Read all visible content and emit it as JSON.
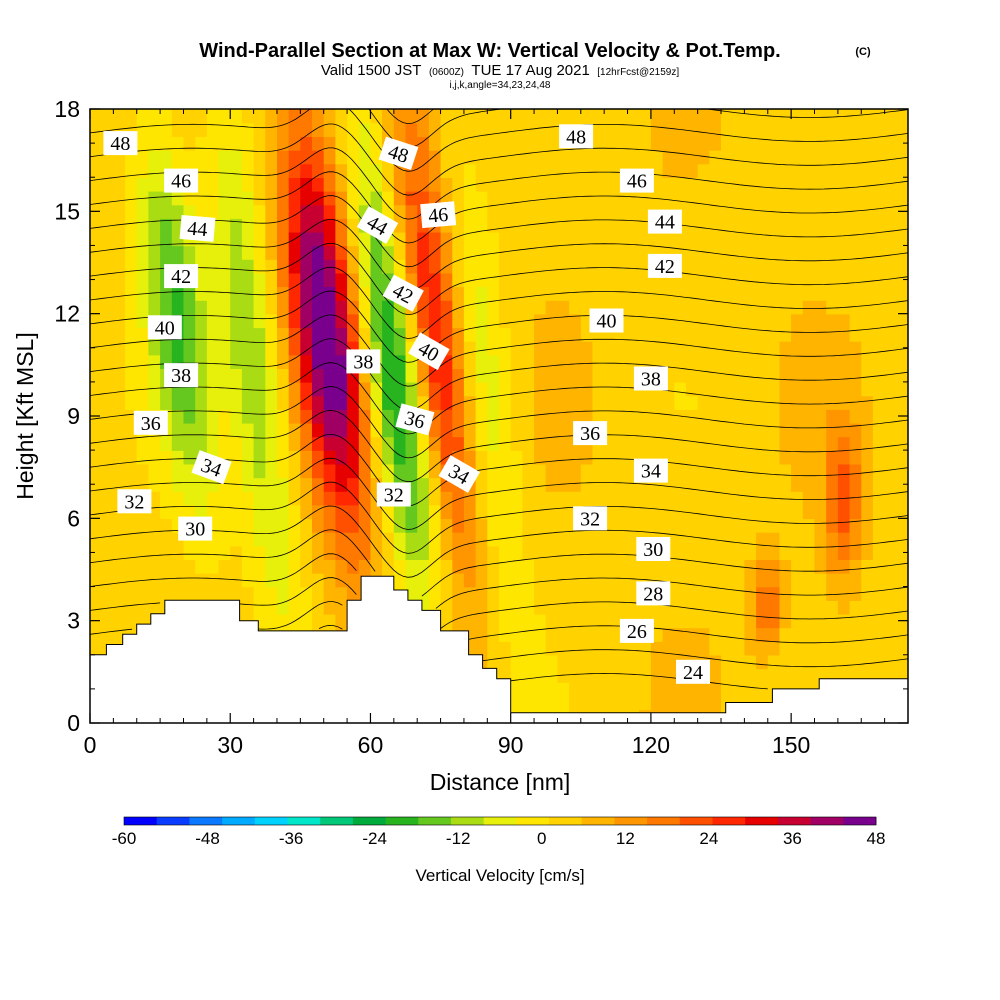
{
  "chart_data": {
    "type": "heatmap",
    "title": "Wind-Parallel Section at Max W: Vertical Velocity & Pot.Temp.",
    "title_mark": "(C)",
    "subtitle_main": "Valid 1500 JST",
    "subtitle_utc": "(0600Z)",
    "subtitle_date": "TUE 17 Aug 2021",
    "subtitle_fcst": "[12hrFcst@2159z]",
    "subtitle_line3": "i,j,k,angle=34,23,24,48",
    "xlabel": "Distance [nm]",
    "ylabel": "Height [Kft MSL]",
    "xlim": [
      0,
      175
    ],
    "ylim": [
      0,
      18
    ],
    "x_ticks": [
      0,
      30,
      60,
      90,
      120,
      150
    ],
    "y_ticks": [
      0,
      3,
      6,
      9,
      12,
      15,
      18
    ],
    "colorbar": {
      "label": "Vertical Velocity [cm/s]",
      "min": -60,
      "max": 48,
      "tick_values": [
        -60,
        -48,
        -36,
        -24,
        -12,
        0,
        12,
        24,
        36,
        48
      ],
      "colors": [
        "#0000ff",
        "#0a3cff",
        "#0a78ff",
        "#00aaff",
        "#00d2ff",
        "#00e6c8",
        "#00c878",
        "#00aa3c",
        "#28b41e",
        "#64c81e",
        "#aadc14",
        "#e6f00a",
        "#ffe600",
        "#ffd200",
        "#ffb400",
        "#ff9600",
        "#ff7800",
        "#ff5000",
        "#ff2800",
        "#e60000",
        "#c80032",
        "#a00064",
        "#78008c"
      ]
    },
    "velocity_cores": [
      {
        "x0": 9,
        "x1": 28,
        "y0": 6,
        "y1": 18,
        "w": -22
      },
      {
        "x0": 26,
        "x1": 44,
        "y0": 2.8,
        "y1": 18,
        "w": -18
      },
      {
        "x0": 40,
        "x1": 61,
        "y0": 5,
        "y1": 18,
        "w": 46
      },
      {
        "x0": 56,
        "x1": 76,
        "y0": 3,
        "y1": 18,
        "w": -38
      },
      {
        "x0": 61,
        "x1": 87,
        "y0": 4,
        "y1": 18,
        "w": 40
      },
      {
        "x0": 72,
        "x1": 92,
        "y0": 3,
        "y1": 18,
        "w": -22
      },
      {
        "x0": 140,
        "x1": 150,
        "y0": 2,
        "y1": 5,
        "w": 16
      },
      {
        "x0": 155,
        "x1": 167,
        "y0": 4,
        "y1": 9,
        "w": 18
      }
    ],
    "terrain": [
      {
        "x": 0,
        "y": 2.0
      },
      {
        "x": 3.5,
        "y": 2.0
      },
      {
        "x": 3.5,
        "y": 2.3
      },
      {
        "x": 7,
        "y": 2.3
      },
      {
        "x": 7,
        "y": 2.6
      },
      {
        "x": 10,
        "y": 2.6
      },
      {
        "x": 10,
        "y": 2.9
      },
      {
        "x": 13,
        "y": 2.9
      },
      {
        "x": 13,
        "y": 3.2
      },
      {
        "x": 16,
        "y": 3.2
      },
      {
        "x": 16,
        "y": 3.6
      },
      {
        "x": 32,
        "y": 3.6
      },
      {
        "x": 32,
        "y": 3.0
      },
      {
        "x": 36,
        "y": 3.0
      },
      {
        "x": 36,
        "y": 2.7
      },
      {
        "x": 55,
        "y": 2.7
      },
      {
        "x": 55,
        "y": 3.6
      },
      {
        "x": 58,
        "y": 3.6
      },
      {
        "x": 58,
        "y": 4.3
      },
      {
        "x": 65,
        "y": 4.3
      },
      {
        "x": 65,
        "y": 3.9
      },
      {
        "x": 68,
        "y": 3.9
      },
      {
        "x": 68,
        "y": 3.6
      },
      {
        "x": 71,
        "y": 3.6
      },
      {
        "x": 71,
        "y": 3.3
      },
      {
        "x": 75,
        "y": 3.3
      },
      {
        "x": 75,
        "y": 2.7
      },
      {
        "x": 81,
        "y": 2.7
      },
      {
        "x": 81,
        "y": 2.0
      },
      {
        "x": 84,
        "y": 2.0
      },
      {
        "x": 84,
        "y": 1.6
      },
      {
        "x": 87,
        "y": 1.6
      },
      {
        "x": 87,
        "y": 1.3
      },
      {
        "x": 90,
        "y": 1.3
      },
      {
        "x": 90,
        "y": 0.3
      },
      {
        "x": 136,
        "y": 0.3
      },
      {
        "x": 136,
        "y": 0.6
      },
      {
        "x": 146,
        "y": 0.6
      },
      {
        "x": 146,
        "y": 1.0
      },
      {
        "x": 156,
        "y": 1.0
      },
      {
        "x": 156,
        "y": 1.3
      },
      {
        "x": 175,
        "y": 1.3
      }
    ],
    "theta_levels": [
      24,
      25,
      26,
      27,
      28,
      29,
      30,
      31,
      32,
      33,
      34,
      35,
      36,
      37,
      38,
      39,
      40,
      41,
      42,
      43,
      44,
      45,
      46,
      47,
      48,
      49
    ],
    "theta_labels": [
      {
        "text": "48",
        "x": 6.5,
        "y": 17.0,
        "rot": 0
      },
      {
        "text": "46",
        "x": 19.5,
        "y": 15.9,
        "rot": 0
      },
      {
        "text": "44",
        "x": 23,
        "y": 14.5,
        "rot": 5
      },
      {
        "text": "42",
        "x": 19.5,
        "y": 13.1,
        "rot": 0
      },
      {
        "text": "40",
        "x": 16,
        "y": 11.6,
        "rot": 0
      },
      {
        "text": "38",
        "x": 19.5,
        "y": 10.2,
        "rot": 0
      },
      {
        "text": "36",
        "x": 13,
        "y": 8.8,
        "rot": 0
      },
      {
        "text": "34",
        "x": 26,
        "y": 7.5,
        "rot": 20
      },
      {
        "text": "32",
        "x": 9.5,
        "y": 6.5,
        "rot": 0
      },
      {
        "text": "30",
        "x": 22.5,
        "y": 5.7,
        "rot": 0
      },
      {
        "text": "48",
        "x": 66,
        "y": 16.7,
        "rot": 18
      },
      {
        "text": "44",
        "x": 61.5,
        "y": 14.6,
        "rot": 30
      },
      {
        "text": "46",
        "x": 74.5,
        "y": 14.9,
        "rot": -5
      },
      {
        "text": "42",
        "x": 67,
        "y": 12.6,
        "rot": 28
      },
      {
        "text": "40",
        "x": 72.5,
        "y": 10.9,
        "rot": 30
      },
      {
        "text": "38",
        "x": 58.5,
        "y": 10.6,
        "rot": 0
      },
      {
        "text": "36",
        "x": 69.5,
        "y": 8.9,
        "rot": 15
      },
      {
        "text": "34",
        "x": 79,
        "y": 7.3,
        "rot": 30
      },
      {
        "text": "32",
        "x": 65,
        "y": 6.7,
        "rot": 0
      },
      {
        "text": "48",
        "x": 104,
        "y": 17.2,
        "rot": 0
      },
      {
        "text": "46",
        "x": 117,
        "y": 15.9,
        "rot": 0
      },
      {
        "text": "44",
        "x": 123,
        "y": 14.7,
        "rot": 0
      },
      {
        "text": "42",
        "x": 123,
        "y": 13.4,
        "rot": 0
      },
      {
        "text": "40",
        "x": 110.5,
        "y": 11.8,
        "rot": 0
      },
      {
        "text": "38",
        "x": 120,
        "y": 10.1,
        "rot": 0
      },
      {
        "text": "36",
        "x": 107,
        "y": 8.5,
        "rot": 0
      },
      {
        "text": "34",
        "x": 120,
        "y": 7.4,
        "rot": 0
      },
      {
        "text": "32",
        "x": 107,
        "y": 6.0,
        "rot": 0
      },
      {
        "text": "30",
        "x": 120.5,
        "y": 5.1,
        "rot": 0
      },
      {
        "text": "28",
        "x": 120.5,
        "y": 3.8,
        "rot": 0
      },
      {
        "text": "26",
        "x": 117,
        "y": 2.7,
        "rot": 0
      },
      {
        "text": "24",
        "x": 129,
        "y": 1.5,
        "rot": 0
      }
    ]
  }
}
